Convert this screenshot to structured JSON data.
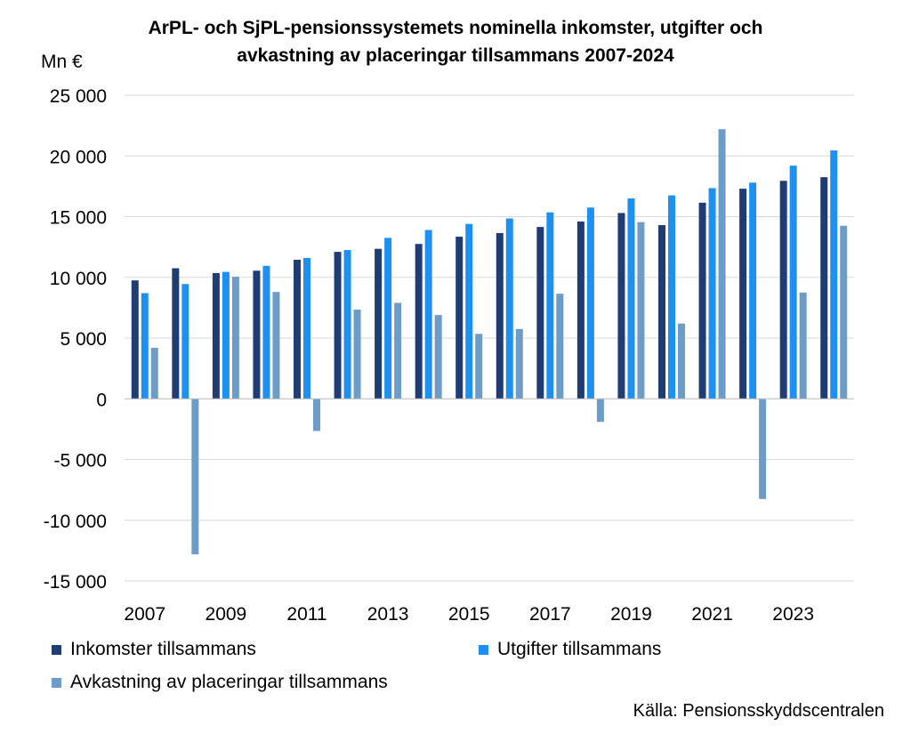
{
  "title_line1": "ArPL- och SjPL-pensionssystemets nominella inkomster,  utgifter och",
  "title_line2": "avkastning av placeringar tillsammans 2007-2024",
  "unit_label": "Mn €",
  "source": "Källa: Pensionsskyddscentralen",
  "chart_data": {
    "type": "bar",
    "title": "ArPL- och SjPL-pensionssystemets nominella inkomster,  utgifter och avkastning av placeringar tillsammans 2007-2024",
    "ylabel": "Mn €",
    "ylim": [
      -15000,
      25000
    ],
    "yticks": [
      25000,
      20000,
      15000,
      10000,
      5000,
      0,
      -5000,
      -10000,
      -15000
    ],
    "ytick_labels": [
      "25 000",
      "20 000",
      "15 000",
      "10 000",
      "5 000",
      "0",
      "-5 000",
      "-10 000",
      "-15 000"
    ],
    "categories": [
      "2007",
      "2008",
      "2009",
      "2010",
      "2011",
      "2012",
      "2013",
      "2014",
      "2015",
      "2016",
      "2017",
      "2018",
      "2019",
      "2020",
      "2021",
      "2022",
      "2023",
      "2024"
    ],
    "xtick_labels": [
      "2007",
      "",
      "2009",
      "",
      "2011",
      "",
      "2013",
      "",
      "2015",
      "",
      "2017",
      "",
      "2019",
      "",
      "2021",
      "",
      "2023",
      ""
    ],
    "grid": true,
    "legend_position": "bottom",
    "series": [
      {
        "name": "Inkomster tillsammans",
        "color": "#1F3C73",
        "values": [
          9750,
          10750,
          10350,
          10550,
          11450,
          12100,
          12350,
          12750,
          13350,
          13650,
          14150,
          14600,
          15300,
          14300,
          16150,
          17300,
          17950,
          18250
        ]
      },
      {
        "name": "Utgifter tillsammans",
        "color": "#1E90F0",
        "values": [
          8700,
          9450,
          10450,
          10950,
          11600,
          12250,
          13250,
          13900,
          14400,
          14850,
          15350,
          15750,
          16500,
          16750,
          17350,
          17800,
          19200,
          20450
        ]
      },
      {
        "name": "Avkastning av placeringar tillsammans",
        "color": "#6E9CC8",
        "values": [
          4200,
          -12800,
          10050,
          8800,
          -2650,
          7350,
          7900,
          6900,
          5350,
          5750,
          8650,
          -1900,
          14550,
          6200,
          22200,
          -8250,
          8750,
          14250
        ]
      }
    ]
  }
}
